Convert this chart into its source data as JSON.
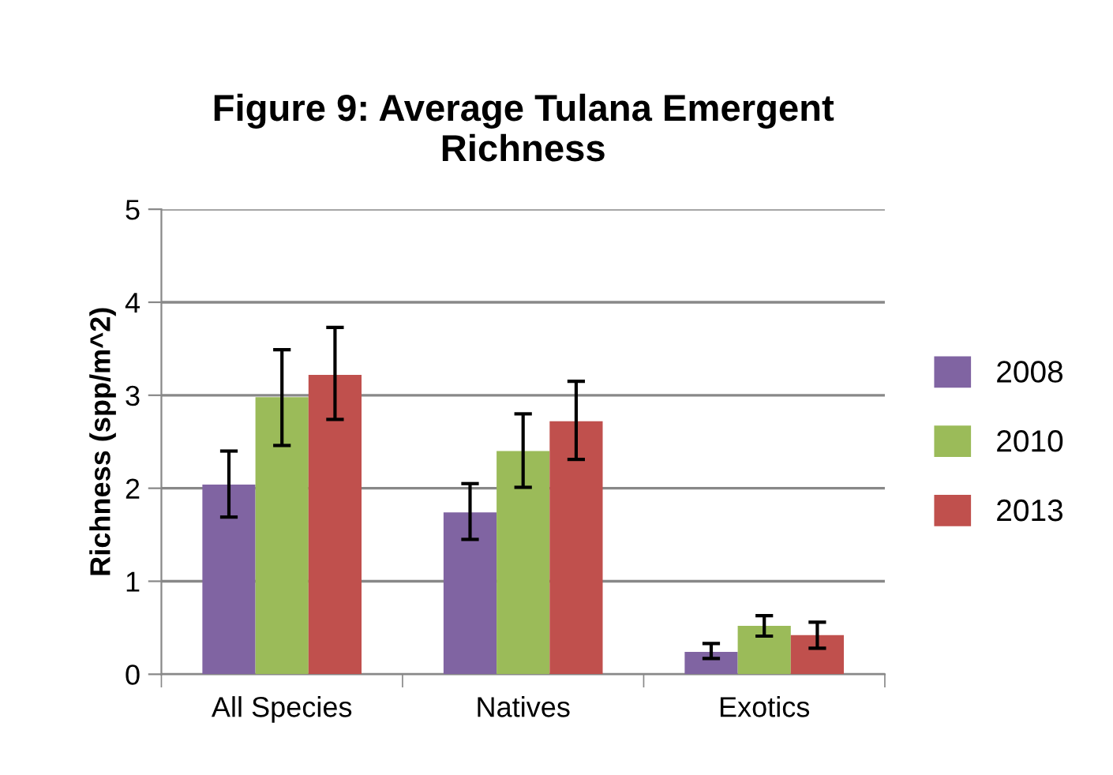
{
  "chart_data": {
    "type": "bar",
    "title": "Figure 9: Average Tulana Emergent\nRichness",
    "ylabel": "Richness (spp/m^2)",
    "categories": [
      "All Species",
      "Natives",
      "Exotics"
    ],
    "series": [
      {
        "name": "2008",
        "color": "#8064a2",
        "values": [
          2.04,
          1.74,
          0.24
        ],
        "errors": [
          [
            1.69,
            2.4
          ],
          [
            1.45,
            2.05
          ],
          [
            0.17,
            0.33
          ]
        ]
      },
      {
        "name": "2010",
        "color": "#9bbb59",
        "values": [
          2.98,
          2.4,
          0.52
        ],
        "errors": [
          [
            2.46,
            3.49
          ],
          [
            2.01,
            2.8
          ],
          [
            0.41,
            0.63
          ]
        ]
      },
      {
        "name": "2013",
        "color": "#c0504d",
        "values": [
          3.22,
          2.72,
          0.42
        ],
        "errors": [
          [
            2.74,
            3.73
          ],
          [
            2.31,
            3.15
          ],
          [
            0.28,
            0.56
          ]
        ]
      }
    ],
    "ylim": [
      0,
      5
    ],
    "yticks": [
      0,
      1,
      2,
      3,
      4,
      5
    ],
    "grid": "y",
    "legend": "right"
  }
}
